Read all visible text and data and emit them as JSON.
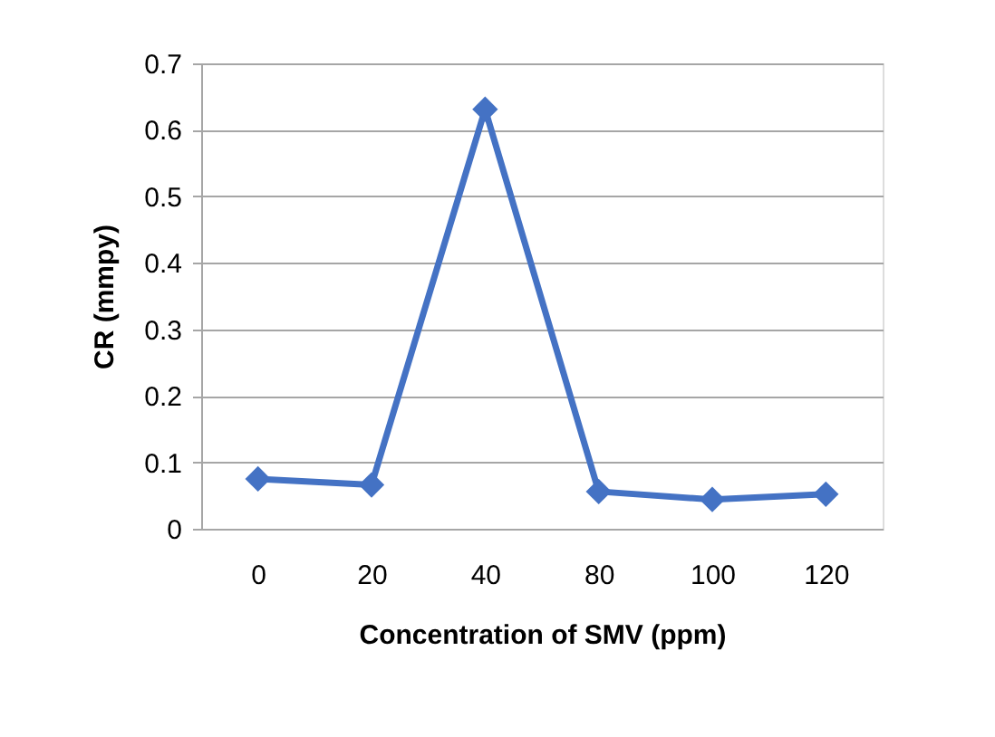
{
  "chart_data": {
    "type": "line",
    "xlabel": "Concentration of  SMV (ppm)",
    "ylabel": "CR (mmpy)",
    "categories": [
      "0",
      "20",
      "40",
      "80",
      "100",
      "120"
    ],
    "series": [
      {
        "color": "#4472c4",
        "values": [
          0.075,
          0.066,
          0.631,
          0.056,
          0.044,
          0.052
        ]
      }
    ],
    "ylim": [
      0,
      0.7
    ],
    "yticks": [
      0,
      0.1,
      0.2,
      0.3,
      0.4,
      0.5,
      0.6,
      0.7
    ],
    "grid": "y",
    "marker": "diamond",
    "line_style": "solid"
  }
}
